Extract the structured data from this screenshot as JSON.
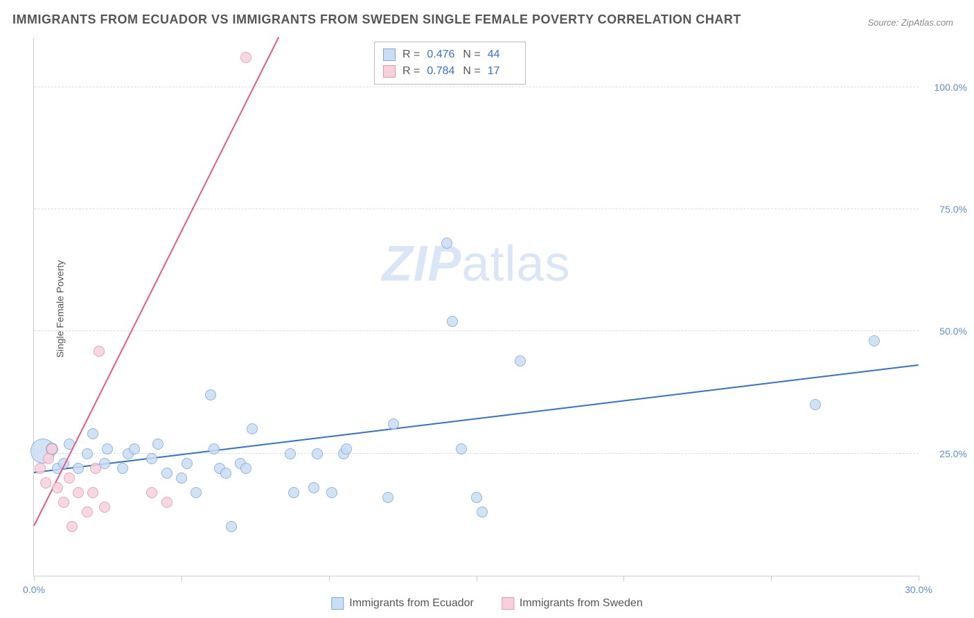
{
  "title": "IMMIGRANTS FROM ECUADOR VS IMMIGRANTS FROM SWEDEN SINGLE FEMALE POVERTY CORRELATION CHART",
  "source": "Source: ZipAtlas.com",
  "y_axis_label": "Single Female Poverty",
  "watermark_bold": "ZIP",
  "watermark_light": "atlas",
  "chart": {
    "type": "scatter",
    "xlim": [
      0,
      30
    ],
    "ylim": [
      0,
      110
    ],
    "x_ticks": [
      0,
      5,
      10,
      15,
      20,
      25,
      30
    ],
    "x_tick_labels": {
      "0": "0.0%",
      "30": "30.0%"
    },
    "y_ticks_labeled": [
      25,
      50,
      75,
      100
    ],
    "y_tick_labels": {
      "25": "25.0%",
      "50": "50.0%",
      "75": "75.0%",
      "100": "100.0%"
    },
    "background_color": "#ffffff",
    "grid_color": "#dddddd",
    "axis_color": "#cccccc",
    "series": [
      {
        "name": "Immigrants from Ecuador",
        "color_fill": "#c9ddf4",
        "color_stroke": "#7fa9db",
        "R": "0.476",
        "N": "44",
        "trend": {
          "x1": 0,
          "y1": 21,
          "x2": 30,
          "y2": 43,
          "color": "#2f6fd6",
          "width": 2
        },
        "marker_radius": 8,
        "points": [
          {
            "x": 0.3,
            "y": 25.5,
            "r": 18
          },
          {
            "x": 0.6,
            "y": 26,
            "r": 9
          },
          {
            "x": 0.8,
            "y": 22,
            "r": 8
          },
          {
            "x": 1.0,
            "y": 23,
            "r": 8
          },
          {
            "x": 1.2,
            "y": 27,
            "r": 8
          },
          {
            "x": 1.5,
            "y": 22,
            "r": 8
          },
          {
            "x": 1.8,
            "y": 25,
            "r": 8
          },
          {
            "x": 2.0,
            "y": 29,
            "r": 8
          },
          {
            "x": 2.4,
            "y": 23,
            "r": 8
          },
          {
            "x": 2.5,
            "y": 26,
            "r": 8
          },
          {
            "x": 3.0,
            "y": 22,
            "r": 8
          },
          {
            "x": 3.2,
            "y": 25,
            "r": 8
          },
          {
            "x": 3.4,
            "y": 26,
            "r": 8
          },
          {
            "x": 4.0,
            "y": 24,
            "r": 8
          },
          {
            "x": 4.2,
            "y": 27,
            "r": 8
          },
          {
            "x": 4.5,
            "y": 21,
            "r": 8
          },
          {
            "x": 5.0,
            "y": 20,
            "r": 8
          },
          {
            "x": 5.2,
            "y": 23,
            "r": 8
          },
          {
            "x": 5.5,
            "y": 17,
            "r": 8
          },
          {
            "x": 6.0,
            "y": 37,
            "r": 8
          },
          {
            "x": 6.1,
            "y": 26,
            "r": 8
          },
          {
            "x": 6.3,
            "y": 22,
            "r": 8
          },
          {
            "x": 6.5,
            "y": 21,
            "r": 8
          },
          {
            "x": 6.7,
            "y": 10,
            "r": 8
          },
          {
            "x": 7.0,
            "y": 23,
            "r": 8
          },
          {
            "x": 7.2,
            "y": 22,
            "r": 8
          },
          {
            "x": 7.4,
            "y": 30,
            "r": 8
          },
          {
            "x": 8.7,
            "y": 25,
            "r": 8
          },
          {
            "x": 8.8,
            "y": 17,
            "r": 8
          },
          {
            "x": 9.5,
            "y": 18,
            "r": 8
          },
          {
            "x": 9.6,
            "y": 25,
            "r": 8
          },
          {
            "x": 10.1,
            "y": 17,
            "r": 8
          },
          {
            "x": 10.5,
            "y": 25,
            "r": 8
          },
          {
            "x": 10.6,
            "y": 26,
            "r": 8
          },
          {
            "x": 12.0,
            "y": 16,
            "r": 8
          },
          {
            "x": 12.2,
            "y": 31,
            "r": 8
          },
          {
            "x": 14.0,
            "y": 68,
            "r": 8
          },
          {
            "x": 14.2,
            "y": 52,
            "r": 8
          },
          {
            "x": 14.5,
            "y": 26,
            "r": 8
          },
          {
            "x": 15.0,
            "y": 16,
            "r": 8
          },
          {
            "x": 15.2,
            "y": 13,
            "r": 8
          },
          {
            "x": 16.5,
            "y": 44,
            "r": 8
          },
          {
            "x": 26.5,
            "y": 35,
            "r": 8
          },
          {
            "x": 28.5,
            "y": 48,
            "r": 8
          }
        ]
      },
      {
        "name": "Immigrants from Sweden",
        "color_fill": "#f6d1db",
        "color_stroke": "#e995ac",
        "R": "0.784",
        "N": "17",
        "trend": {
          "x1": 0,
          "y1": 10,
          "x2": 8.3,
          "y2": 110,
          "color": "#e35a82",
          "width": 2
        },
        "marker_radius": 8,
        "points": [
          {
            "x": 0.2,
            "y": 22,
            "r": 8
          },
          {
            "x": 0.4,
            "y": 19,
            "r": 8
          },
          {
            "x": 0.5,
            "y": 24,
            "r": 8
          },
          {
            "x": 0.6,
            "y": 26,
            "r": 8
          },
          {
            "x": 0.8,
            "y": 18,
            "r": 8
          },
          {
            "x": 1.0,
            "y": 15,
            "r": 8
          },
          {
            "x": 1.2,
            "y": 20,
            "r": 8
          },
          {
            "x": 1.3,
            "y": 10,
            "r": 8
          },
          {
            "x": 1.5,
            "y": 17,
            "r": 8
          },
          {
            "x": 1.8,
            "y": 13,
            "r": 8
          },
          {
            "x": 2.0,
            "y": 17,
            "r": 8
          },
          {
            "x": 2.1,
            "y": 22,
            "r": 8
          },
          {
            "x": 2.4,
            "y": 14,
            "r": 8
          },
          {
            "x": 2.2,
            "y": 46,
            "r": 8
          },
          {
            "x": 4.0,
            "y": 17,
            "r": 8
          },
          {
            "x": 4.5,
            "y": 15,
            "r": 8
          },
          {
            "x": 7.2,
            "y": 106,
            "r": 8
          }
        ]
      }
    ]
  },
  "stats_labels": {
    "R": "R =",
    "N": "N ="
  },
  "legend": {
    "series1_label": "Immigrants from Ecuador",
    "series2_label": "Immigrants from Sweden"
  }
}
